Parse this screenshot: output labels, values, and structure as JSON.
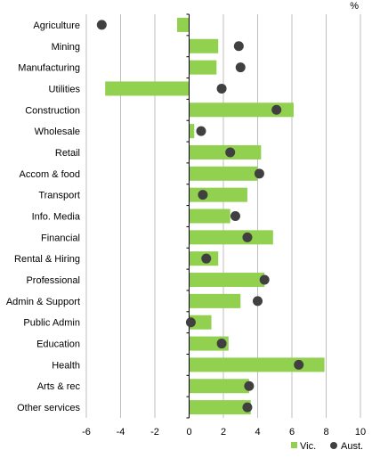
{
  "chart_data": {
    "type": "bar",
    "orientation": "horizontal",
    "unit": "%",
    "categories": [
      "Agriculture",
      "Mining",
      "Manufacturing",
      "Utilities",
      "Construction",
      "Wholesale",
      "Retail",
      "Accom & food",
      "Transport",
      "Info. Media",
      "Financial",
      "Rental & Hiring",
      "Professional",
      "Admin & Support",
      "Public Admin",
      "Education",
      "Health",
      "Arts & rec",
      "Other services"
    ],
    "series": [
      {
        "name": "Vic.",
        "kind": "bar",
        "color": "#92d050",
        "values": [
          -0.7,
          1.7,
          1.6,
          -4.9,
          6.1,
          0.3,
          4.2,
          4.0,
          3.4,
          2.4,
          4.9,
          1.7,
          4.4,
          3.0,
          1.3,
          2.3,
          7.9,
          3.5,
          3.6
        ]
      },
      {
        "name": "Aust.",
        "kind": "marker",
        "color": "#404040",
        "values": [
          -5.1,
          2.9,
          3.0,
          1.9,
          5.1,
          0.7,
          2.4,
          4.1,
          0.8,
          2.7,
          3.4,
          1.0,
          4.4,
          4.0,
          0.1,
          1.9,
          6.4,
          3.5,
          3.4
        ]
      }
    ],
    "xlim": [
      -6,
      10
    ],
    "xticks": [
      -6,
      -4,
      -2,
      0,
      2,
      4,
      6,
      8,
      10
    ],
    "grid": true,
    "legend_position": "bottom-right"
  }
}
